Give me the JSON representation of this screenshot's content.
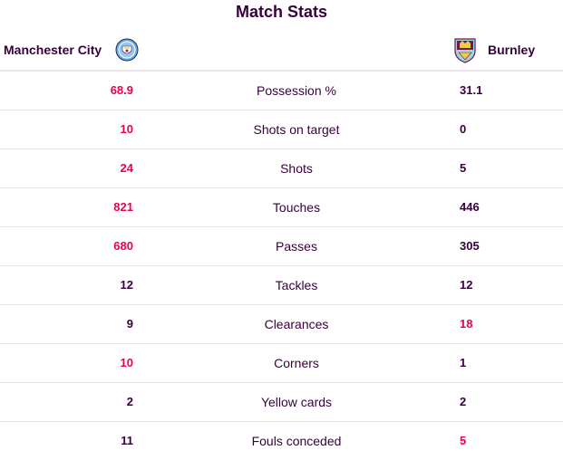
{
  "title": "Match Stats",
  "home_team": {
    "name": "Manchester City",
    "crest_icon": "man-city-crest-icon"
  },
  "away_team": {
    "name": "Burnley",
    "crest_icon": "burnley-crest-icon"
  },
  "colors": {
    "leader": "#e90052",
    "normal": "#37003c"
  },
  "stats": [
    {
      "label": "Possession %",
      "home": "68.9",
      "away": "31.1",
      "leader": "home"
    },
    {
      "label": "Shots on target",
      "home": "10",
      "away": "0",
      "leader": "home"
    },
    {
      "label": "Shots",
      "home": "24",
      "away": "5",
      "leader": "home"
    },
    {
      "label": "Touches",
      "home": "821",
      "away": "446",
      "leader": "home"
    },
    {
      "label": "Passes",
      "home": "680",
      "away": "305",
      "leader": "home"
    },
    {
      "label": "Tackles",
      "home": "12",
      "away": "12",
      "leader": "none"
    },
    {
      "label": "Clearances",
      "home": "9",
      "away": "18",
      "leader": "away"
    },
    {
      "label": "Corners",
      "home": "10",
      "away": "1",
      "leader": "home"
    },
    {
      "label": "Yellow cards",
      "home": "2",
      "away": "2",
      "leader": "none"
    },
    {
      "label": "Fouls conceded",
      "home": "11",
      "away": "5",
      "leader": "away"
    }
  ]
}
